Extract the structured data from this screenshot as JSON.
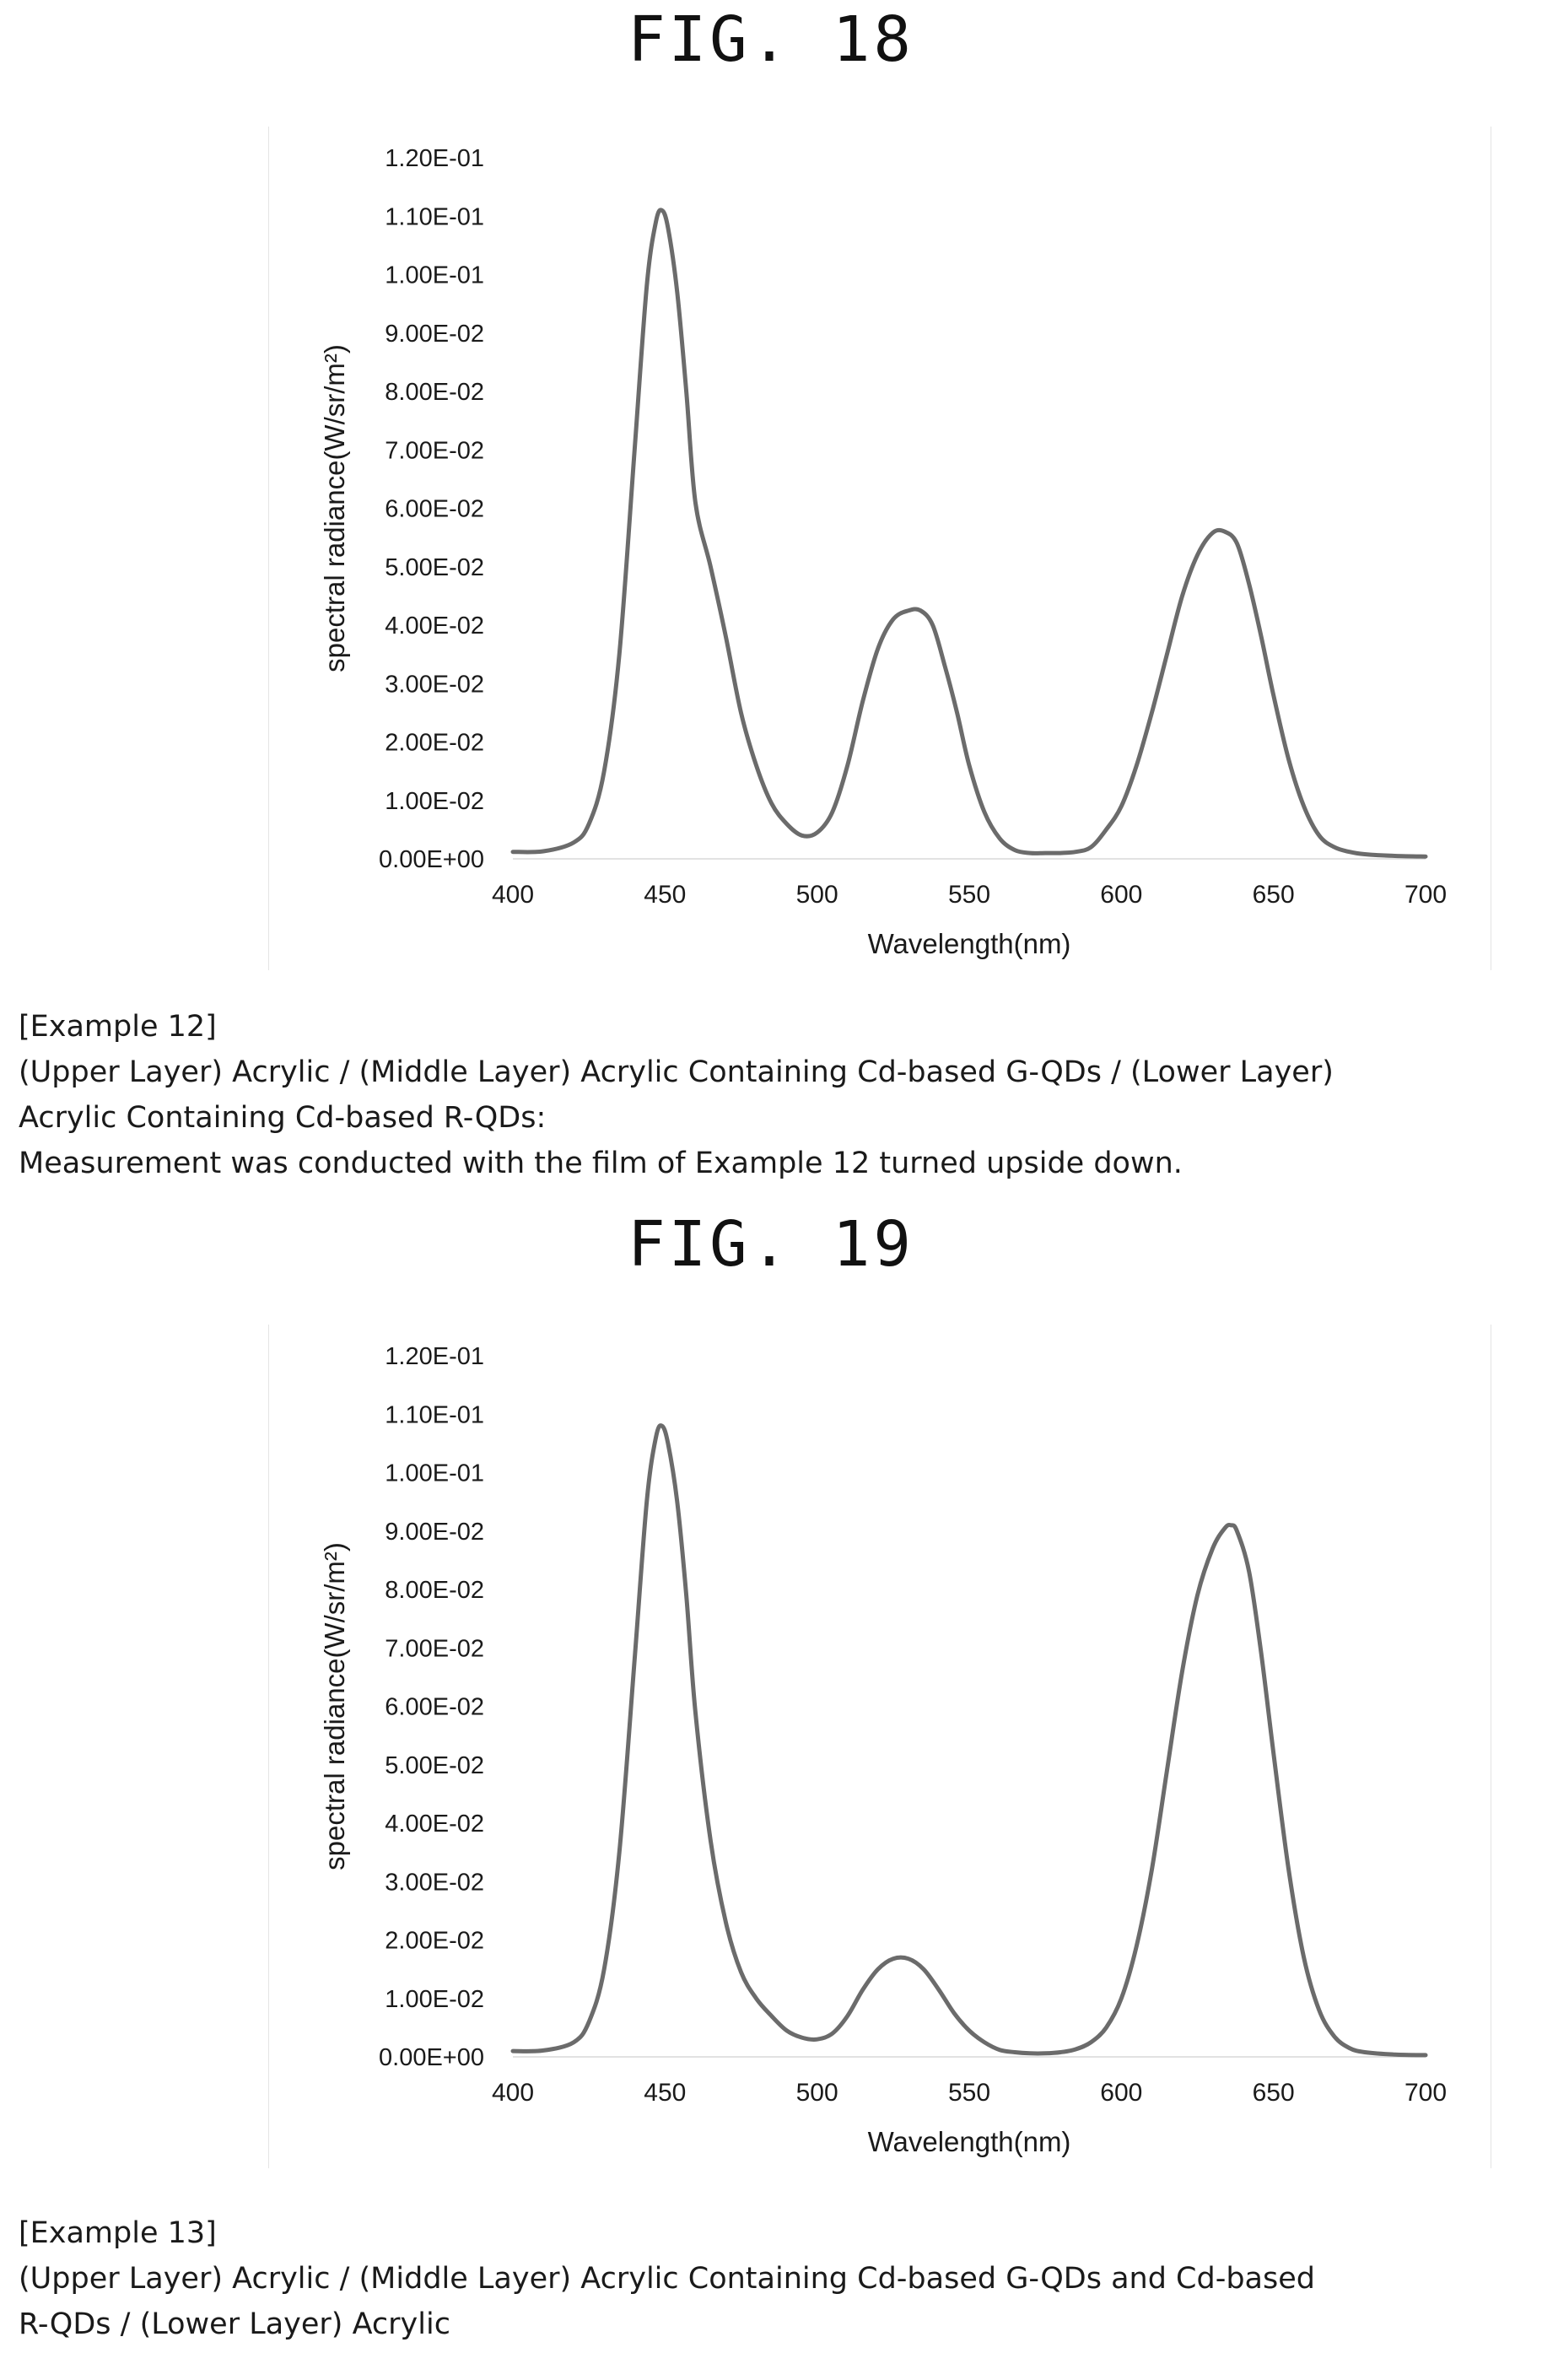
{
  "figures": [
    {
      "title": "FIG. 18",
      "caption": [
        "[Example 12]",
        "(Upper Layer) Acrylic / (Middle Layer) Acrylic Containing Cd-based G-QDs / (Lower Layer)",
        "Acrylic Containing Cd-based R-QDs:",
        "Measurement was conducted with the film of Example 12 turned upside down."
      ]
    },
    {
      "title": "FIG. 19",
      "caption": [
        "[Example 13]",
        "(Upper Layer) Acrylic / (Middle Layer) Acrylic Containing Cd-based G-QDs and Cd-based",
        "R-QDs / (Lower Layer) Acrylic"
      ]
    }
  ],
  "chart_data": [
    {
      "type": "line",
      "xlabel": "Wavelength(nm)",
      "ylabel": "spectral radiance(W/sr/m²)",
      "xlim": [
        400,
        700
      ],
      "ylim": [
        0,
        0.12
      ],
      "xticks": [
        400,
        450,
        500,
        550,
        600,
        650,
        700
      ],
      "xtick_labels": [
        "400",
        "450",
        "500",
        "550",
        "600",
        "650",
        "700"
      ],
      "yticks": [
        0,
        0.01,
        0.02,
        0.03,
        0.04,
        0.05,
        0.06,
        0.07,
        0.08,
        0.09,
        0.1,
        0.11,
        0.12
      ],
      "ytick_labels": [
        "0.00E+00",
        "1.00E-02",
        "2.00E-02",
        "3.00E-02",
        "4.00E-02",
        "5.00E-02",
        "6.00E-02",
        "7.00E-02",
        "8.00E-02",
        "9.00E-02",
        "1.00E-01",
        "1.10E-01",
        "1.20E-01"
      ],
      "grid": false,
      "line_color": "#6b6b6b",
      "series": [
        {
          "x": [
            400,
            410,
            420,
            425,
            430,
            435,
            440,
            444,
            447,
            449,
            451,
            454,
            457,
            460,
            465,
            470,
            475,
            480,
            485,
            490,
            495,
            500,
            505,
            510,
            515,
            520,
            525,
            530,
            534,
            538,
            542,
            546,
            550,
            555,
            560,
            565,
            570,
            575,
            580,
            585,
            590,
            595,
            600,
            605,
            610,
            615,
            620,
            625,
            630,
            634,
            638,
            642,
            646,
            650,
            655,
            660,
            665,
            670,
            675,
            680,
            690,
            700
          ],
          "y": [
            0.0012,
            0.0013,
            0.0028,
            0.006,
            0.015,
            0.035,
            0.07,
            0.098,
            0.109,
            0.111,
            0.108,
            0.097,
            0.08,
            0.061,
            0.05,
            0.038,
            0.025,
            0.016,
            0.0095,
            0.006,
            0.004,
            0.0045,
            0.008,
            0.016,
            0.027,
            0.036,
            0.041,
            0.0425,
            0.0425,
            0.04,
            0.033,
            0.025,
            0.016,
            0.008,
            0.0035,
            0.0015,
            0.001,
            0.001,
            0.001,
            0.0012,
            0.002,
            0.005,
            0.009,
            0.016,
            0.025,
            0.035,
            0.045,
            0.052,
            0.0558,
            0.056,
            0.054,
            0.047,
            0.038,
            0.028,
            0.017,
            0.009,
            0.004,
            0.002,
            0.0012,
            0.0008,
            0.0005,
            0.0004
          ]
        }
      ]
    },
    {
      "type": "line",
      "xlabel": "Wavelength(nm)",
      "ylabel": "spectral radiance(W/sr/m²)",
      "xlim": [
        400,
        700
      ],
      "ylim": [
        0,
        0.12
      ],
      "xticks": [
        400,
        450,
        500,
        550,
        600,
        650,
        700
      ],
      "xtick_labels": [
        "400",
        "450",
        "500",
        "550",
        "600",
        "650",
        "700"
      ],
      "yticks": [
        0,
        0.01,
        0.02,
        0.03,
        0.04,
        0.05,
        0.06,
        0.07,
        0.08,
        0.09,
        0.1,
        0.11,
        0.12
      ],
      "ytick_labels": [
        "0.00E+00",
        "1.00E-02",
        "2.00E-02",
        "3.00E-02",
        "4.00E-02",
        "5.00E-02",
        "6.00E-02",
        "7.00E-02",
        "8.00E-02",
        "9.00E-02",
        "1.00E-01",
        "1.10E-01",
        "1.20E-01"
      ],
      "grid": false,
      "line_color": "#6b6b6b",
      "series": [
        {
          "x": [
            400,
            410,
            420,
            425,
            430,
            435,
            440,
            444,
            447,
            449,
            451,
            454,
            457,
            460,
            465,
            470,
            475,
            480,
            485,
            490,
            495,
            500,
            505,
            510,
            515,
            520,
            525,
            530,
            535,
            540,
            545,
            550,
            555,
            560,
            565,
            570,
            575,
            580,
            585,
            590,
            595,
            600,
            605,
            610,
            615,
            620,
            625,
            630,
            634,
            636,
            638,
            642,
            646,
            650,
            655,
            660,
            665,
            670,
            675,
            680,
            690,
            700
          ],
          "y": [
            0.001,
            0.0011,
            0.0025,
            0.006,
            0.015,
            0.035,
            0.068,
            0.095,
            0.106,
            0.108,
            0.105,
            0.095,
            0.079,
            0.059,
            0.037,
            0.023,
            0.0145,
            0.01,
            0.007,
            0.0045,
            0.0033,
            0.003,
            0.004,
            0.007,
            0.0115,
            0.015,
            0.0168,
            0.0168,
            0.015,
            0.0115,
            0.0075,
            0.0045,
            0.0025,
            0.0012,
            0.0008,
            0.0006,
            0.0006,
            0.0008,
            0.0013,
            0.0025,
            0.005,
            0.01,
            0.019,
            0.032,
            0.049,
            0.066,
            0.079,
            0.087,
            0.0905,
            0.091,
            0.09,
            0.083,
            0.069,
            0.052,
            0.032,
            0.017,
            0.008,
            0.0035,
            0.0015,
            0.0008,
            0.0004,
            0.0003
          ]
        }
      ]
    }
  ]
}
